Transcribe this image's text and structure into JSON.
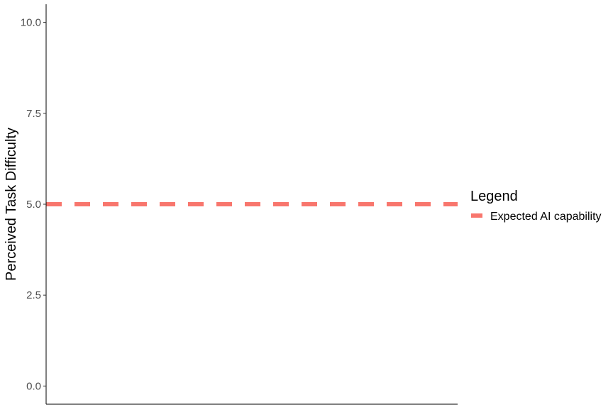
{
  "chart_data": {
    "type": "line",
    "title": "",
    "xlabel": "",
    "ylabel": "Perceived Task Difficulty",
    "ylim": [
      -0.5,
      10.5
    ],
    "y_ticks": [
      0.0,
      2.5,
      5.0,
      7.5,
      10.0
    ],
    "y_tick_labels": [
      "0.0",
      "2.5",
      "5.0",
      "7.5",
      "10.0"
    ],
    "x_ticks": [],
    "grid": false,
    "legend_position": "right",
    "legend_title": "Legend",
    "series": [
      {
        "name": "Expected AI capability",
        "kind": "horizontal-reference-line",
        "y": 5.0,
        "line_style": "dashed",
        "color": "#F8766D"
      }
    ]
  },
  "colors": {
    "series_red": "#F8766D",
    "axis": "#000000",
    "tick_text": "#4d4d4d"
  }
}
